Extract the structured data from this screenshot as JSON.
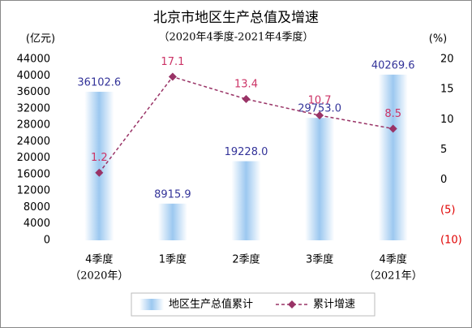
{
  "chart_data": {
    "type": "bar-line",
    "title": "北京市地区生产总值及增速",
    "subtitle": "（2020年4季度-2021年4季度）",
    "y_axis_label": "(亿元)",
    "y2_axis_label": "(%)",
    "categories": [
      "4季度",
      "1季度",
      "2季度",
      "3季度",
      "4季度"
    ],
    "category_sublabels": [
      "（2020年）",
      null,
      null,
      null,
      "（2021年）"
    ],
    "series": [
      {
        "name": "地区生产总值累计",
        "type": "bar",
        "color": "#9cc8f0",
        "label_color": "#333399",
        "values": [
          36102.6,
          8915.9,
          19228.0,
          29753.0,
          40269.6
        ],
        "value_labels": [
          "36102.6",
          "8915.9",
          "19228.0",
          "29753.0",
          "40269.6"
        ]
      },
      {
        "name": "累计增速",
        "type": "line",
        "axis": "y2",
        "color": "#993366",
        "label_color": "#cc3366",
        "values": [
          1.2,
          17.1,
          13.4,
          10.7,
          8.5
        ]
      }
    ],
    "ylim": [
      0,
      44000
    ],
    "yticks": [
      0,
      4000,
      8000,
      12000,
      16000,
      20000,
      24000,
      28000,
      32000,
      36000,
      40000,
      44000
    ],
    "y2lim": [
      -10,
      20
    ],
    "y2ticks": [
      {
        "value": -10,
        "label": "(10)"
      },
      {
        "value": -5,
        "label": "(5)"
      },
      0,
      5,
      10,
      15,
      20
    ],
    "y2_negative_color": "#e00000",
    "grid": false,
    "legend": "bottom"
  }
}
